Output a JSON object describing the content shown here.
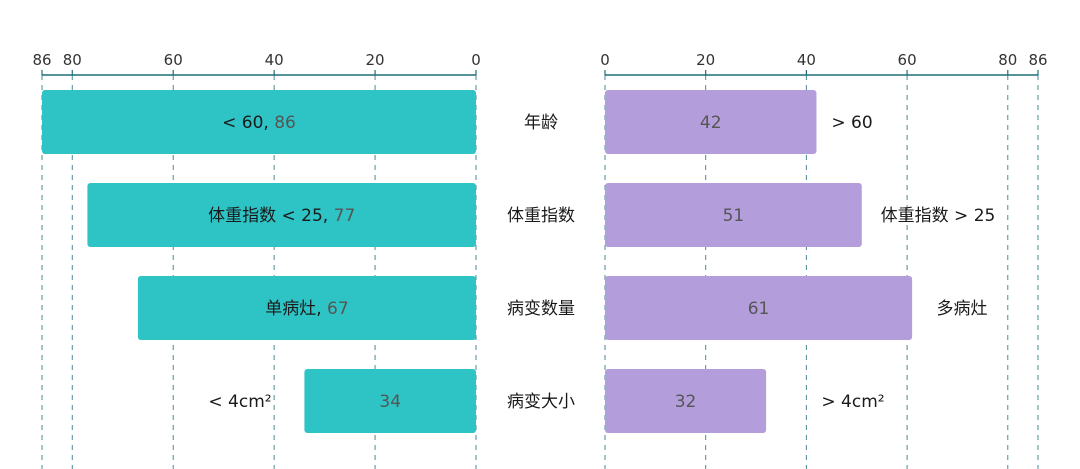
{
  "chart_data": {
    "type": "bar",
    "layout": "butterfly",
    "categories": [
      "年龄",
      "体重指数",
      "病变数量",
      "病变大小"
    ],
    "left": {
      "xlim": [
        0,
        86
      ],
      "ticks": [
        "86",
        "80",
        "60",
        "40",
        "20",
        "0"
      ],
      "tick_values": [
        86,
        80,
        60,
        40,
        20,
        0
      ],
      "color": "#2EC4C6",
      "series": [
        {
          "label": "< 60,",
          "value": 86
        },
        {
          "label": "体重指数 < 25,",
          "value": 77
        },
        {
          "label": "单病灶,",
          "value": 67
        },
        {
          "label": "< 4cm²",
          "value": 34
        }
      ]
    },
    "right": {
      "xlim": [
        0,
        86
      ],
      "ticks": [
        "0",
        "20",
        "40",
        "60",
        "80",
        "86"
      ],
      "tick_values": [
        0,
        20,
        40,
        60,
        80,
        86
      ],
      "color": "#B39DDB",
      "series": [
        {
          "label": "> 60",
          "value": 42
        },
        {
          "label": "体重指数 > 25",
          "value": 51
        },
        {
          "label": "多病灶",
          "value": 61
        },
        {
          "label": "> 4cm²",
          "value": 32
        }
      ]
    },
    "grid": true,
    "axis_color": "#1F6E78"
  }
}
